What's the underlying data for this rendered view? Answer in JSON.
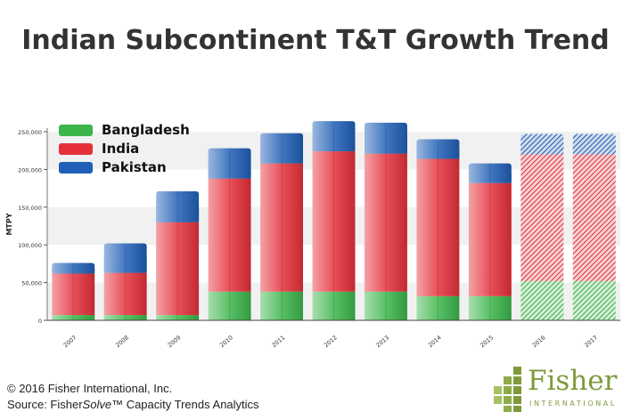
{
  "title": "Indian Subcontinent T&T Growth Trend",
  "footer": {
    "copyright": "© 2016 Fisher International, Inc.",
    "source_prefix": "Source: Fisher",
    "source_solve": "Solve",
    "source_tm": "™",
    "source_suffix": " Capacity Trends Analytics"
  },
  "logo": {
    "name": "Fisher",
    "subtitle": "INTERNATIONAL"
  },
  "chart_data": {
    "type": "bar",
    "stacked": true,
    "categories": [
      "2007",
      "2008",
      "2009",
      "2010",
      "2011",
      "2012",
      "2013",
      "2014",
      "2015",
      "2016",
      "2017"
    ],
    "forecast_categories": [
      "2016",
      "2017"
    ],
    "series": [
      {
        "name": "Bangladesh",
        "color": "#3cb54a",
        "values": [
          7000,
          7000,
          7000,
          38000,
          38000,
          38000,
          38000,
          32000,
          32000,
          52000,
          52000
        ]
      },
      {
        "name": "India",
        "color": "#e5303a",
        "values": [
          55000,
          56000,
          123000,
          150000,
          170000,
          186000,
          183000,
          182000,
          150000,
          168000,
          168000
        ]
      },
      {
        "name": "Pakistan",
        "color": "#1f5fb5",
        "values": [
          14000,
          39000,
          41000,
          40000,
          40000,
          40000,
          41000,
          26000,
          26000,
          27000,
          27000
        ]
      }
    ],
    "ylabel": "MTPY",
    "xlabel": "",
    "ylim": [
      0,
      250000
    ],
    "yticks": [
      "0",
      "50,000",
      "100,000",
      "150,000",
      "200,000",
      "250,000"
    ],
    "ytick_values": [
      0,
      50000,
      100000,
      150000,
      200000,
      250000
    ],
    "legend_position": "top-left"
  }
}
